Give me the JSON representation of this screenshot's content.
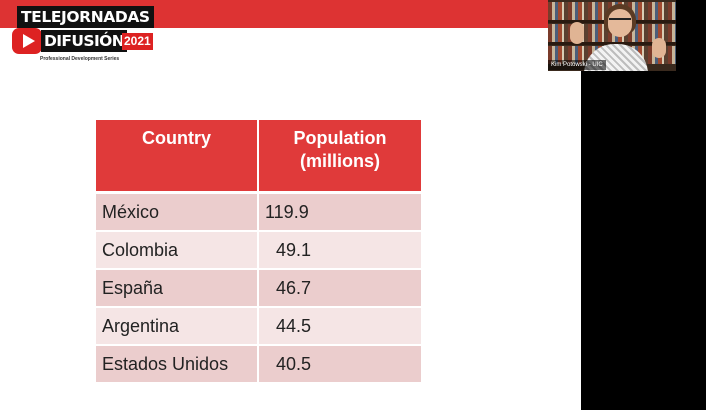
{
  "logo": {
    "line1": "TELEJORNADAS",
    "line2": "DIFUSIÓN",
    "year": "2021",
    "subtitle": "Professional Development Series"
  },
  "table": {
    "headers": [
      "Country",
      "Population",
      "(millions)"
    ],
    "rows": [
      {
        "country": "México",
        "population": "119.9"
      },
      {
        "country": "Colombia",
        "population": "49.1"
      },
      {
        "country": "España",
        "population": "46.7"
      },
      {
        "country": "Argentina",
        "population": "44.5"
      },
      {
        "country": "Estados Unidos",
        "population": "40.5"
      }
    ]
  },
  "participant": {
    "name": "Kim Potowski - UIC"
  },
  "colors": {
    "brand_red": "#dd3333",
    "header_red": "#e03a3a",
    "row_odd": "#ebcdcd",
    "row_even": "#f5e5e5",
    "background": "#000000"
  }
}
